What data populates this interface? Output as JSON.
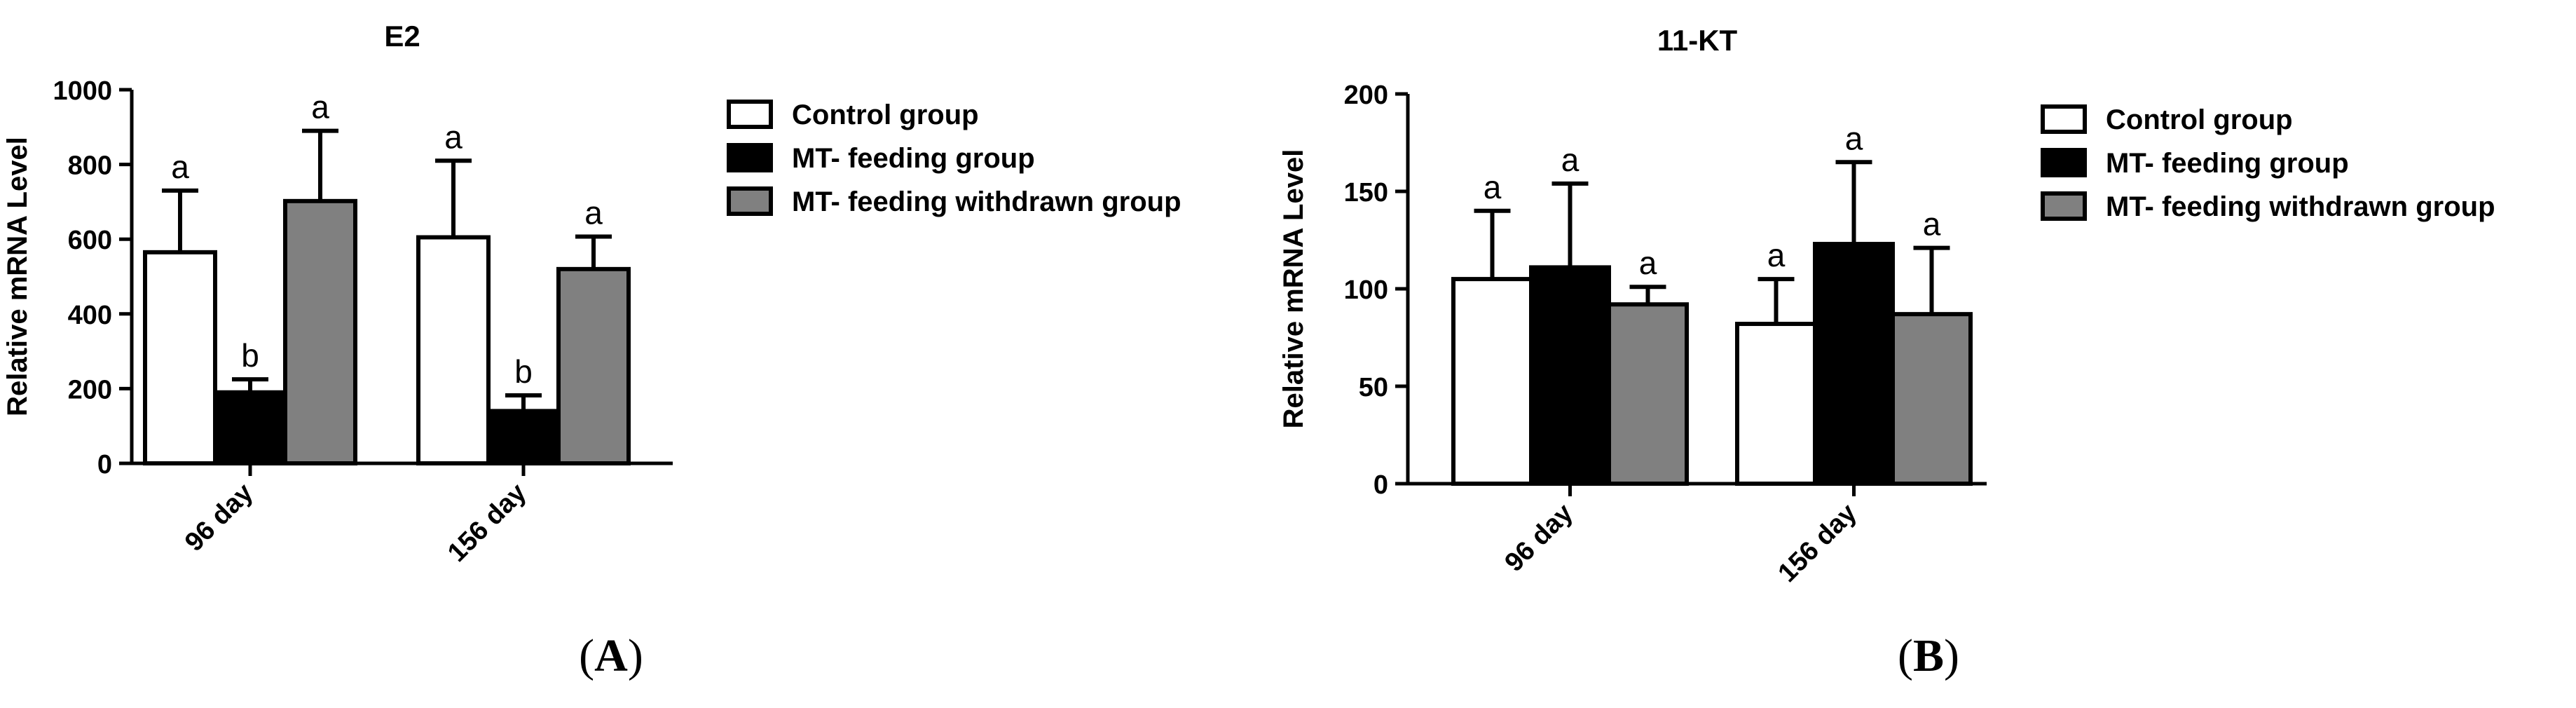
{
  "colors": {
    "series": [
      "#ffffff",
      "#000000",
      "#808080"
    ],
    "stroke": "#000000"
  },
  "panels": [
    {
      "label_left": "(",
      "label_letter": "A",
      "label_right": ")"
    },
    {
      "label_left": "(",
      "label_letter": "B",
      "label_right": ")"
    }
  ],
  "chart_data": [
    {
      "type": "bar",
      "title": "E2",
      "xlabel": "",
      "ylabel": "Relative mRNA Level",
      "ylim": [
        0,
        1000
      ],
      "yticks": [
        0,
        200,
        400,
        600,
        800,
        1000
      ],
      "categories": [
        "96 day",
        "156 day"
      ],
      "legend_position": "right",
      "grid": false,
      "series": [
        {
          "name": "Control group",
          "values": [
            565,
            605
          ],
          "errors": [
            165,
            205
          ],
          "labels": [
            "a",
            "a"
          ]
        },
        {
          "name": "MT- feeding group",
          "values": [
            190,
            140
          ],
          "errors": [
            35,
            42
          ],
          "labels": [
            "b",
            "b"
          ]
        },
        {
          "name": "MT- feeding withdrawn group",
          "values": [
            702,
            520
          ],
          "errors": [
            188,
            87
          ],
          "labels": [
            "a",
            "a"
          ]
        }
      ]
    },
    {
      "type": "bar",
      "title": "11-KT",
      "xlabel": "",
      "ylabel": "Relative mRNA Level",
      "ylim": [
        0,
        200
      ],
      "yticks": [
        0,
        50,
        100,
        150,
        200
      ],
      "categories": [
        "96 day",
        "156 day"
      ],
      "legend_position": "right",
      "grid": false,
      "series": [
        {
          "name": "Control group",
          "values": [
            105,
            82
          ],
          "errors": [
            35,
            23
          ],
          "labels": [
            "a",
            "a"
          ]
        },
        {
          "name": "MT- feeding group",
          "values": [
            111,
            123
          ],
          "errors": [
            43,
            42
          ],
          "labels": [
            "a",
            "a"
          ]
        },
        {
          "name": "MT- feeding withdrawn group",
          "values": [
            92,
            87
          ],
          "errors": [
            9,
            34
          ],
          "labels": [
            "a",
            "a"
          ]
        }
      ]
    }
  ]
}
